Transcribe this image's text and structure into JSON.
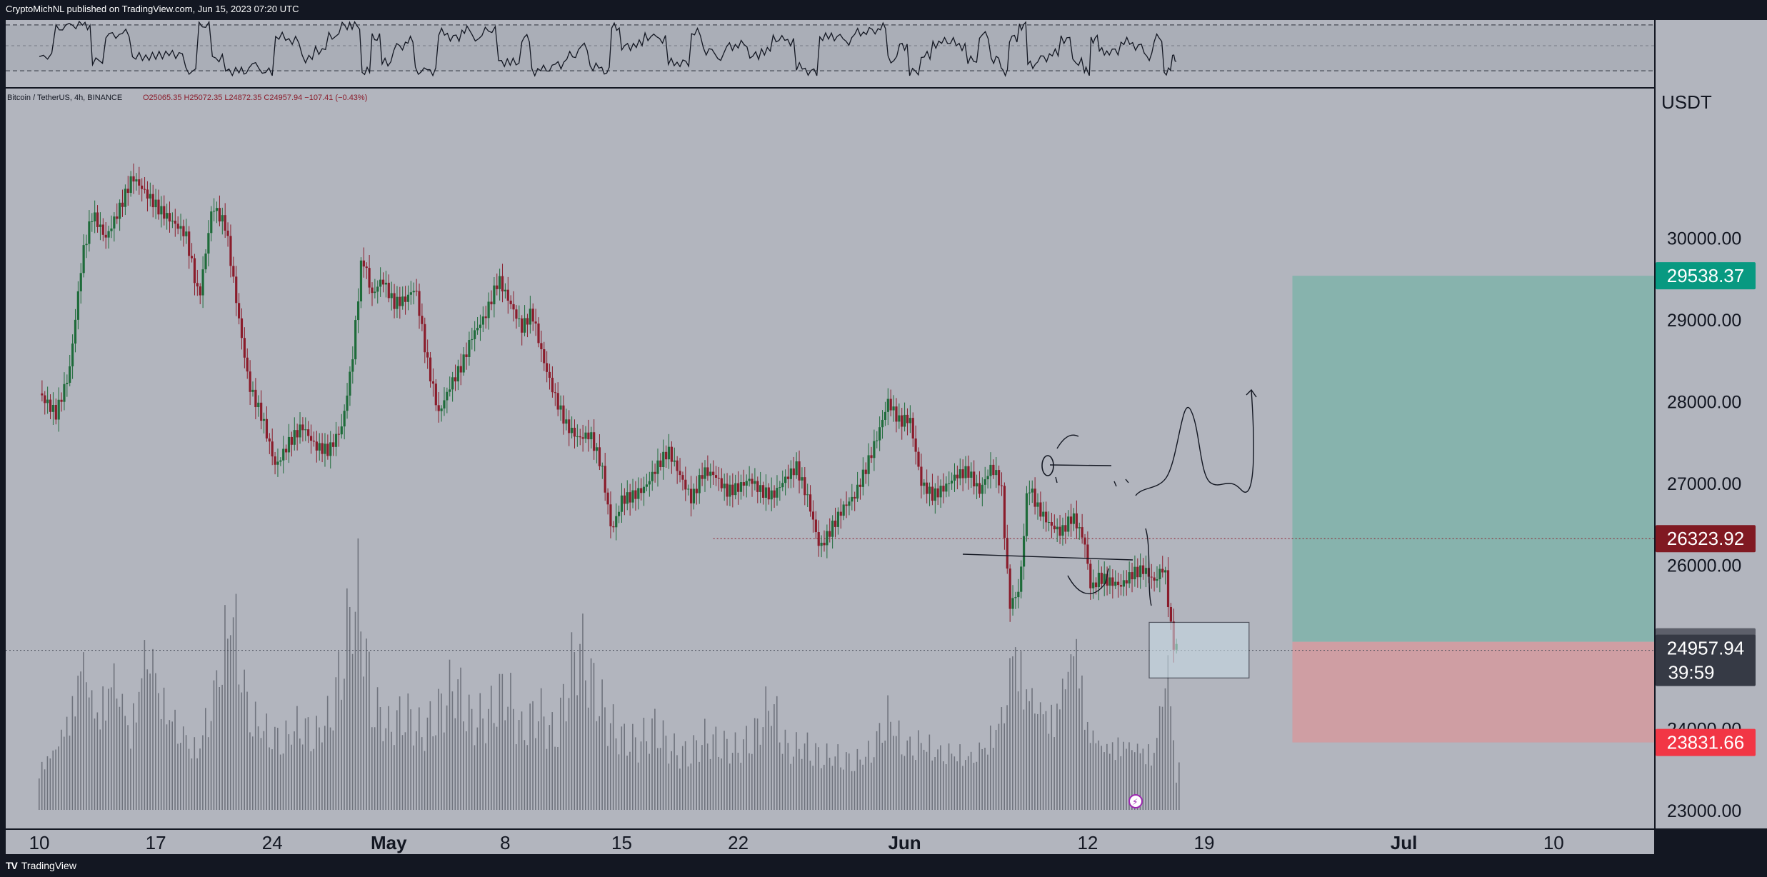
{
  "header": {
    "text": "CryptoMichNL published on TradingView.com, Jun 15, 2023 07:20 UTC"
  },
  "footer": {
    "logo": "TV",
    "text": "TradingView"
  },
  "legend": {
    "symbol": "Bitcoin / TetherUS, 4h, BINANCE",
    "ohlc": "O25065.35  H25072.35  L24872.35  C24957.94  −107.41 (−0.43%)"
  },
  "colors": {
    "background": "#b2b5be",
    "frame": "#131722",
    "up": "#1e6b3a",
    "down": "#8a1c2b",
    "target_zone": "#7fb3aa",
    "stop_zone": "#d49a9f",
    "tag_target": "#089981",
    "tag_current_red": "#801922",
    "tag_grey": "#5d606b",
    "tag_dark": "#363a45",
    "tag_stop": "#f23645"
  },
  "chart_data": {
    "type": "candlestick",
    "title": "Bitcoin / TetherUS, 4h, BINANCE",
    "currency": "USDT",
    "ylim": [
      22500,
      31000
    ],
    "y_ticks": [
      23000,
      24000,
      25000,
      26000,
      27000,
      28000,
      29000,
      30000
    ],
    "y_tick_labels": [
      "23000.00",
      "24000.00",
      "25000.00",
      "26000.00",
      "27000.00",
      "28000.00",
      "29000.00",
      "30000.00"
    ],
    "x_ticks": [
      "10",
      "17",
      "24",
      "May",
      "8",
      "15",
      "22",
      "Jun",
      "12",
      "19",
      "Jul",
      "10"
    ],
    "x_tick_days": [
      0,
      7,
      14,
      21,
      28,
      35,
      42,
      52,
      63,
      70,
      82,
      91
    ],
    "ohlc_last": {
      "open": 25065.35,
      "high": 25072.35,
      "low": 24872.35,
      "close": 24957.94,
      "change": -107.41,
      "change_pct": -0.43
    },
    "price_path": [
      [
        0,
        28100
      ],
      [
        1,
        27850
      ],
      [
        1.8,
        28350
      ],
      [
        2.6,
        29800
      ],
      [
        3.2,
        30300
      ],
      [
        4,
        30000
      ],
      [
        4.8,
        30350
      ],
      [
        5.6,
        30750
      ],
      [
        6.4,
        30550
      ],
      [
        7.2,
        30350
      ],
      [
        8,
        30200
      ],
      [
        8.8,
        30050
      ],
      [
        9.6,
        29250
      ],
      [
        10.4,
        30400
      ],
      [
        11.2,
        30150
      ],
      [
        12,
        29000
      ],
      [
        12.6,
        28200
      ],
      [
        13.4,
        27800
      ],
      [
        14.2,
        27200
      ],
      [
        15,
        27500
      ],
      [
        15.8,
        27700
      ],
      [
        16.6,
        27450
      ],
      [
        17.4,
        27400
      ],
      [
        18.2,
        27700
      ],
      [
        18.8,
        28500
      ],
      [
        19.4,
        29800
      ],
      [
        20,
        29300
      ],
      [
        20.6,
        29500
      ],
      [
        21.3,
        29200
      ],
      [
        22,
        29250
      ],
      [
        22.6,
        29400
      ],
      [
        23.3,
        28500
      ],
      [
        24,
        27850
      ],
      [
        24.7,
        28200
      ],
      [
        25.4,
        28450
      ],
      [
        26,
        28800
      ],
      [
        26.8,
        29050
      ],
      [
        27.6,
        29500
      ],
      [
        28.3,
        29200
      ],
      [
        29,
        28900
      ],
      [
        29.6,
        29100
      ],
      [
        30.3,
        28500
      ],
      [
        31,
        28050
      ],
      [
        31.7,
        27700
      ],
      [
        32.4,
        27550
      ],
      [
        33.1,
        27600
      ],
      [
        33.8,
        27200
      ],
      [
        34.4,
        26400
      ],
      [
        35,
        26800
      ],
      [
        35.7,
        26850
      ],
      [
        36.4,
        26950
      ],
      [
        37.1,
        27200
      ],
      [
        37.8,
        27400
      ],
      [
        38.5,
        27100
      ],
      [
        39.2,
        26800
      ],
      [
        39.9,
        27150
      ],
      [
        40.6,
        27100
      ],
      [
        41.3,
        26900
      ],
      [
        42,
        26950
      ],
      [
        42.7,
        27050
      ],
      [
        43.4,
        26900
      ],
      [
        44.1,
        26850
      ],
      [
        44.8,
        27050
      ],
      [
        45.5,
        27200
      ],
      [
        46.2,
        26800
      ],
      [
        46.9,
        26200
      ],
      [
        47.6,
        26450
      ],
      [
        48.3,
        26700
      ],
      [
        49,
        26850
      ],
      [
        49.7,
        27200
      ],
      [
        50.4,
        27600
      ],
      [
        51,
        28000
      ],
      [
        51.7,
        27750
      ],
      [
        52.3,
        27800
      ],
      [
        53,
        27000
      ],
      [
        53.7,
        26850
      ],
      [
        54.4,
        26950
      ],
      [
        55.1,
        27100
      ],
      [
        55.8,
        27150
      ],
      [
        56.5,
        26900
      ],
      [
        57.2,
        27200
      ],
      [
        57.8,
        27000
      ],
      [
        58.3,
        25500
      ],
      [
        58.9,
        25700
      ],
      [
        59.4,
        27000
      ],
      [
        60,
        26700
      ],
      [
        60.7,
        26500
      ],
      [
        61.4,
        26400
      ],
      [
        62.1,
        26600
      ],
      [
        62.8,
        26300
      ],
      [
        63.2,
        25700
      ],
      [
        63.7,
        25850
      ],
      [
        64.3,
        25800
      ],
      [
        65,
        25750
      ],
      [
        65.7,
        25900
      ],
      [
        66.4,
        25950
      ],
      [
        67,
        25800
      ],
      [
        67.6,
        26000
      ],
      [
        68.1,
        25050
      ],
      [
        68.4,
        24960
      ]
    ],
    "volume_path": [
      [
        0,
        80
      ],
      [
        1,
        120
      ],
      [
        2,
        200
      ],
      [
        2.6,
        300
      ],
      [
        3.4,
        180
      ],
      [
        4.5,
        260
      ],
      [
        5.5,
        150
      ],
      [
        6.5,
        320
      ],
      [
        7.5,
        200
      ],
      [
        8.5,
        150
      ],
      [
        9.5,
        110
      ],
      [
        10.5,
        220
      ],
      [
        11.6,
        390
      ],
      [
        12.6,
        180
      ],
      [
        13.6,
        150
      ],
      [
        14.6,
        130
      ],
      [
        15.6,
        160
      ],
      [
        16.6,
        140
      ],
      [
        17.6,
        180
      ],
      [
        18.6,
        350
      ],
      [
        19.2,
        400
      ],
      [
        20,
        200
      ],
      [
        21,
        150
      ],
      [
        22,
        180
      ],
      [
        23,
        140
      ],
      [
        24,
        180
      ],
      [
        25,
        230
      ],
      [
        26,
        160
      ],
      [
        27,
        170
      ],
      [
        28,
        220
      ],
      [
        29,
        140
      ],
      [
        30,
        180
      ],
      [
        31,
        130
      ],
      [
        32.4,
        300
      ],
      [
        33.2,
        230
      ],
      [
        34.2,
        160
      ],
      [
        35,
        130
      ],
      [
        36,
        120
      ],
      [
        37,
        150
      ],
      [
        38,
        110
      ],
      [
        39,
        100
      ],
      [
        40,
        130
      ],
      [
        41,
        120
      ],
      [
        42,
        110
      ],
      [
        43,
        140
      ],
      [
        44,
        200
      ],
      [
        45,
        110
      ],
      [
        46,
        120
      ],
      [
        47,
        100
      ],
      [
        48,
        100
      ],
      [
        49,
        90
      ],
      [
        50,
        110
      ],
      [
        51,
        180
      ],
      [
        52,
        120
      ],
      [
        53,
        130
      ],
      [
        54,
        110
      ],
      [
        55,
        110
      ],
      [
        56,
        100
      ],
      [
        57,
        130
      ],
      [
        58,
        190
      ],
      [
        58.6,
        330
      ],
      [
        59.2,
        240
      ],
      [
        60,
        200
      ],
      [
        61,
        180
      ],
      [
        62.3,
        330
      ],
      [
        63,
        160
      ],
      [
        64,
        120
      ],
      [
        65,
        130
      ],
      [
        66,
        120
      ],
      [
        67,
        110
      ],
      [
        67.8,
        290
      ],
      [
        68.4,
        40
      ]
    ],
    "position": {
      "target": 29538.37,
      "entry": 25062.45,
      "stop": 23831.66,
      "start_day": 75.3,
      "end_day": 98
    },
    "horizontal_levels": [
      26323.92,
      24957.94
    ],
    "price_tags": [
      {
        "value": 29538.37,
        "label": "29538.37",
        "color_key": "tag_target"
      },
      {
        "value": 26323.92,
        "label": "26323.92",
        "color_key": "tag_current_red"
      },
      {
        "value": 25062.45,
        "label": "25062.45",
        "color_key": "tag_grey"
      },
      {
        "value": 24957.94,
        "label": "24957.94",
        "sub": "39:59",
        "color_key": "tag_dark"
      },
      {
        "value": 23831.66,
        "label": "23831.66",
        "color_key": "tag_stop"
      }
    ],
    "box": {
      "day_start": 68.9,
      "day_end": 74.9,
      "top": 25300,
      "bottom": 24620
    }
  }
}
